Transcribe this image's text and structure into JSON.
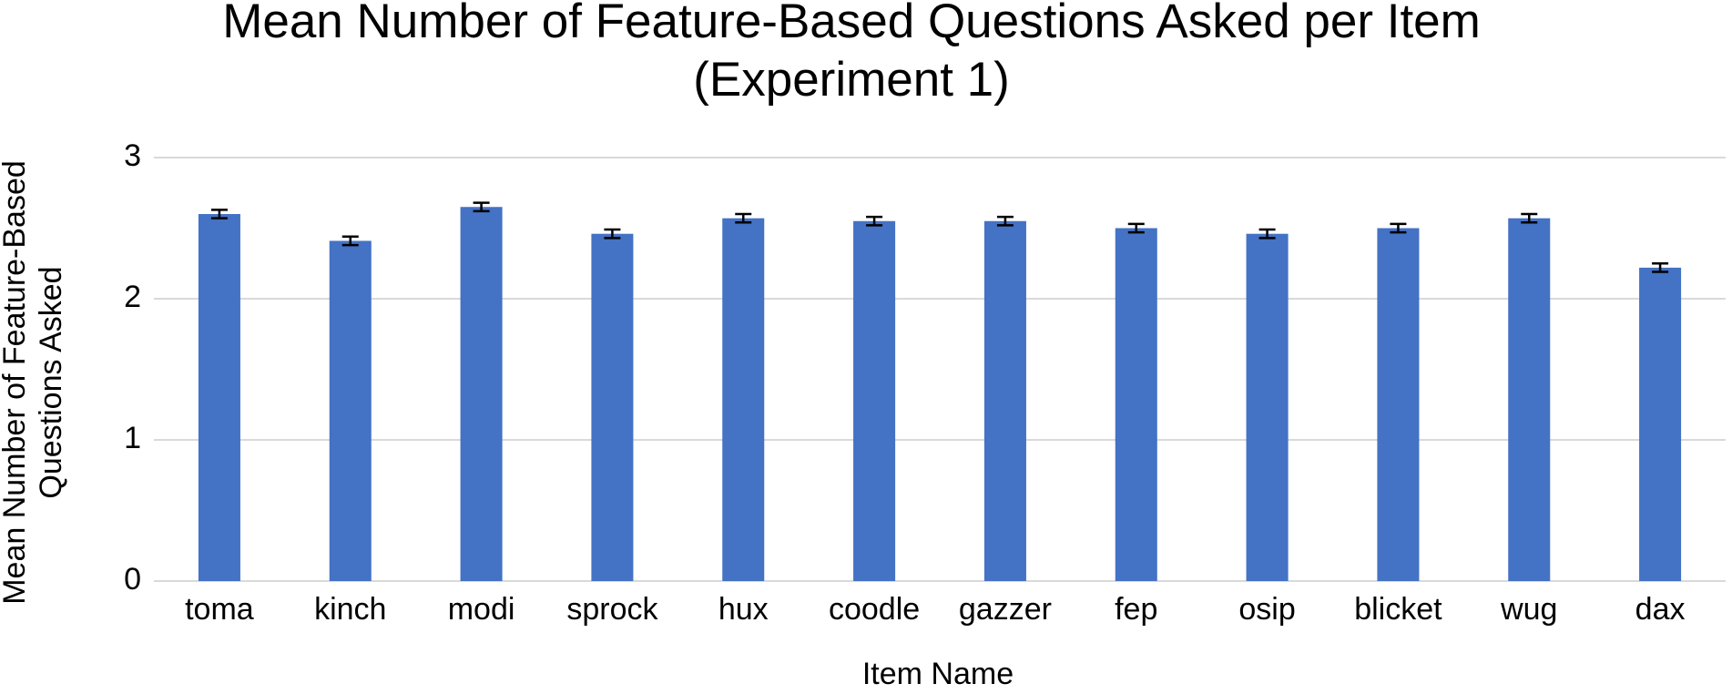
{
  "chart_data": {
    "type": "bar",
    "title": [
      "Mean Number of Feature-Based Questions Asked per Item",
      "(Experiment 1)"
    ],
    "x_label": "Item Name",
    "y_label": [
      "Mean Number of Feature-Based",
      "Questions Asked"
    ],
    "categories": [
      "toma",
      "kinch",
      "modi",
      "sprock",
      "hux",
      "coodle",
      "gazzer",
      "fep",
      "osip",
      "blicket",
      "wug",
      "dax"
    ],
    "values": [
      2.6,
      2.41,
      2.65,
      2.46,
      2.57,
      2.55,
      2.55,
      2.5,
      2.46,
      2.5,
      2.57,
      2.22
    ],
    "errors": [
      0.03,
      0.03,
      0.03,
      0.03,
      0.03,
      0.03,
      0.03,
      0.03,
      0.03,
      0.03,
      0.03,
      0.03
    ],
    "color": "#4472c4",
    "ylim": [
      0,
      3
    ],
    "yticks": [
      0,
      1,
      2,
      3
    ],
    "grid": true
  }
}
